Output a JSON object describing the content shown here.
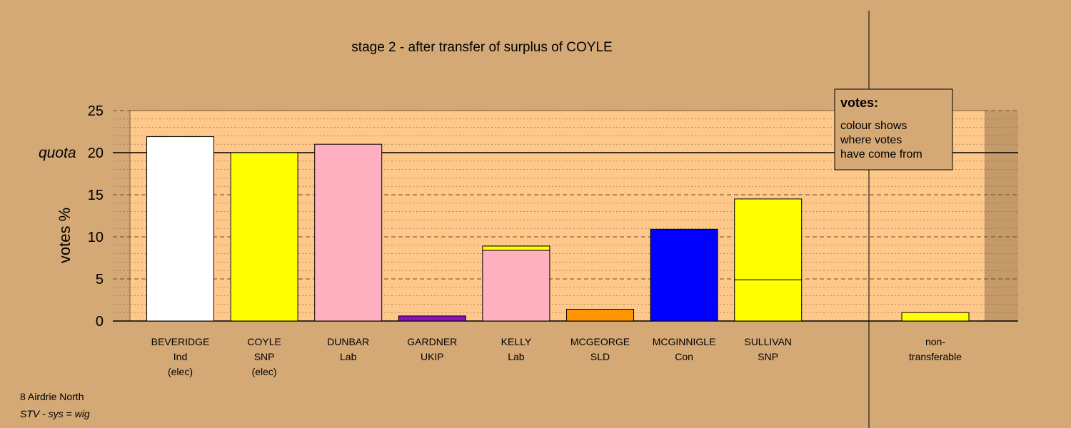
{
  "chart_data": {
    "type": "bar",
    "title": "stage 2 - after transfer of surplus of COYLE",
    "ylabel": "votes %",
    "ylim": [
      0,
      25
    ],
    "yticks": [
      0,
      5,
      10,
      15,
      20,
      25
    ],
    "quota": 20,
    "quota_label": "quota",
    "grid": true,
    "colors": {
      "background": "#d4a976",
      "plot_background": "#fec88a",
      "Ind": "#ffffff",
      "SNP": "#ffff00",
      "Lab": "#ffb0c0",
      "UKIP": "#8b12b5",
      "SLD": "#ff9500",
      "Con": "#0000ff",
      "non-transferable": "#ffff00"
    },
    "categories": [
      {
        "name": "BEVERIDGE",
        "party": "Ind",
        "note": "(elec)",
        "segments": [
          {
            "from": "Ind",
            "value": 21.9
          }
        ]
      },
      {
        "name": "COYLE",
        "party": "SNP",
        "note": "(elec)",
        "segments": [
          {
            "from": "SNP",
            "value": 20.0
          }
        ]
      },
      {
        "name": "DUNBAR",
        "party": "Lab",
        "note": "",
        "segments": [
          {
            "from": "Lab",
            "value": 21.0
          }
        ]
      },
      {
        "name": "GARDNER",
        "party": "UKIP",
        "note": "",
        "segments": [
          {
            "from": "UKIP",
            "value": 0.6
          }
        ]
      },
      {
        "name": "KELLY",
        "party": "Lab",
        "note": "",
        "segments": [
          {
            "from": "Lab",
            "value": 8.4
          },
          {
            "from": "SNP",
            "value": 0.5
          }
        ]
      },
      {
        "name": "MCGEORGE",
        "party": "SLD",
        "note": "",
        "segments": [
          {
            "from": "SLD",
            "value": 1.4
          }
        ]
      },
      {
        "name": "MCGINNIGLE",
        "party": "Con",
        "note": "",
        "segments": [
          {
            "from": "Con",
            "value": 10.9
          }
        ]
      },
      {
        "name": "SULLIVAN",
        "party": "SNP",
        "note": "",
        "segments": [
          {
            "from": "SNP",
            "value": 4.9
          },
          {
            "from": "SNP",
            "value": 9.6
          }
        ]
      }
    ],
    "nontransferable": {
      "line1": "non-",
      "line2": "transferable",
      "value": 1.0
    },
    "legend": {
      "title": "votes:",
      "lines": [
        "colour shows",
        "where votes",
        "have come from"
      ],
      "placement": "top-right"
    }
  },
  "footer": {
    "region": "8 Airdrie North",
    "system": "STV - sys = wig"
  }
}
